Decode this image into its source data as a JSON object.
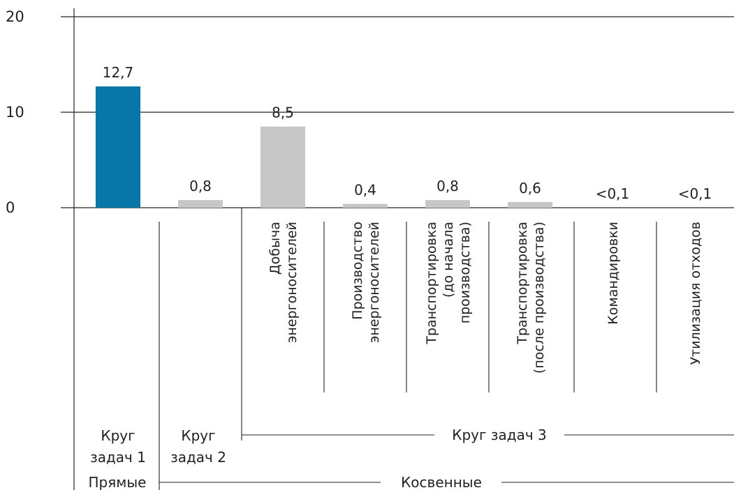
{
  "chart_data": {
    "type": "bar",
    "ylim": [
      0,
      20
    ],
    "yticks": [
      "0",
      "10",
      "20"
    ],
    "grid": true,
    "categories": [
      [
        "Круг",
        "задач 1"
      ],
      [
        "Круг",
        "задач 2"
      ],
      [
        "Добыча",
        "энергоносителей"
      ],
      [
        "Производство",
        "энергоносителей"
      ],
      [
        "Транспортировка",
        "(до начала",
        "производства)"
      ],
      [
        "Транспортировка",
        "(после производства)"
      ],
      [
        "Командировки"
      ],
      [
        "Утилизация отходов"
      ]
    ],
    "values": [
      12.7,
      0.8,
      8.5,
      0.4,
      0.8,
      0.6,
      0.1,
      0.1
    ],
    "value_labels": [
      "12,7",
      "0,8",
      "8,5",
      "0,4",
      "0,8",
      "0,6",
      "<0,1",
      "<0,1"
    ],
    "colors": [
      "#0677a8",
      "#c6c7c6",
      "#c6c7c6",
      "#c6c7c6",
      "#c6c7c6",
      "#c6c7c6",
      "#c6c7c6",
      "#c6c7c6"
    ],
    "groups": {
      "scope3": "Круг задач 3",
      "direct": "Прямые",
      "indirect": "Косвенные"
    }
  }
}
